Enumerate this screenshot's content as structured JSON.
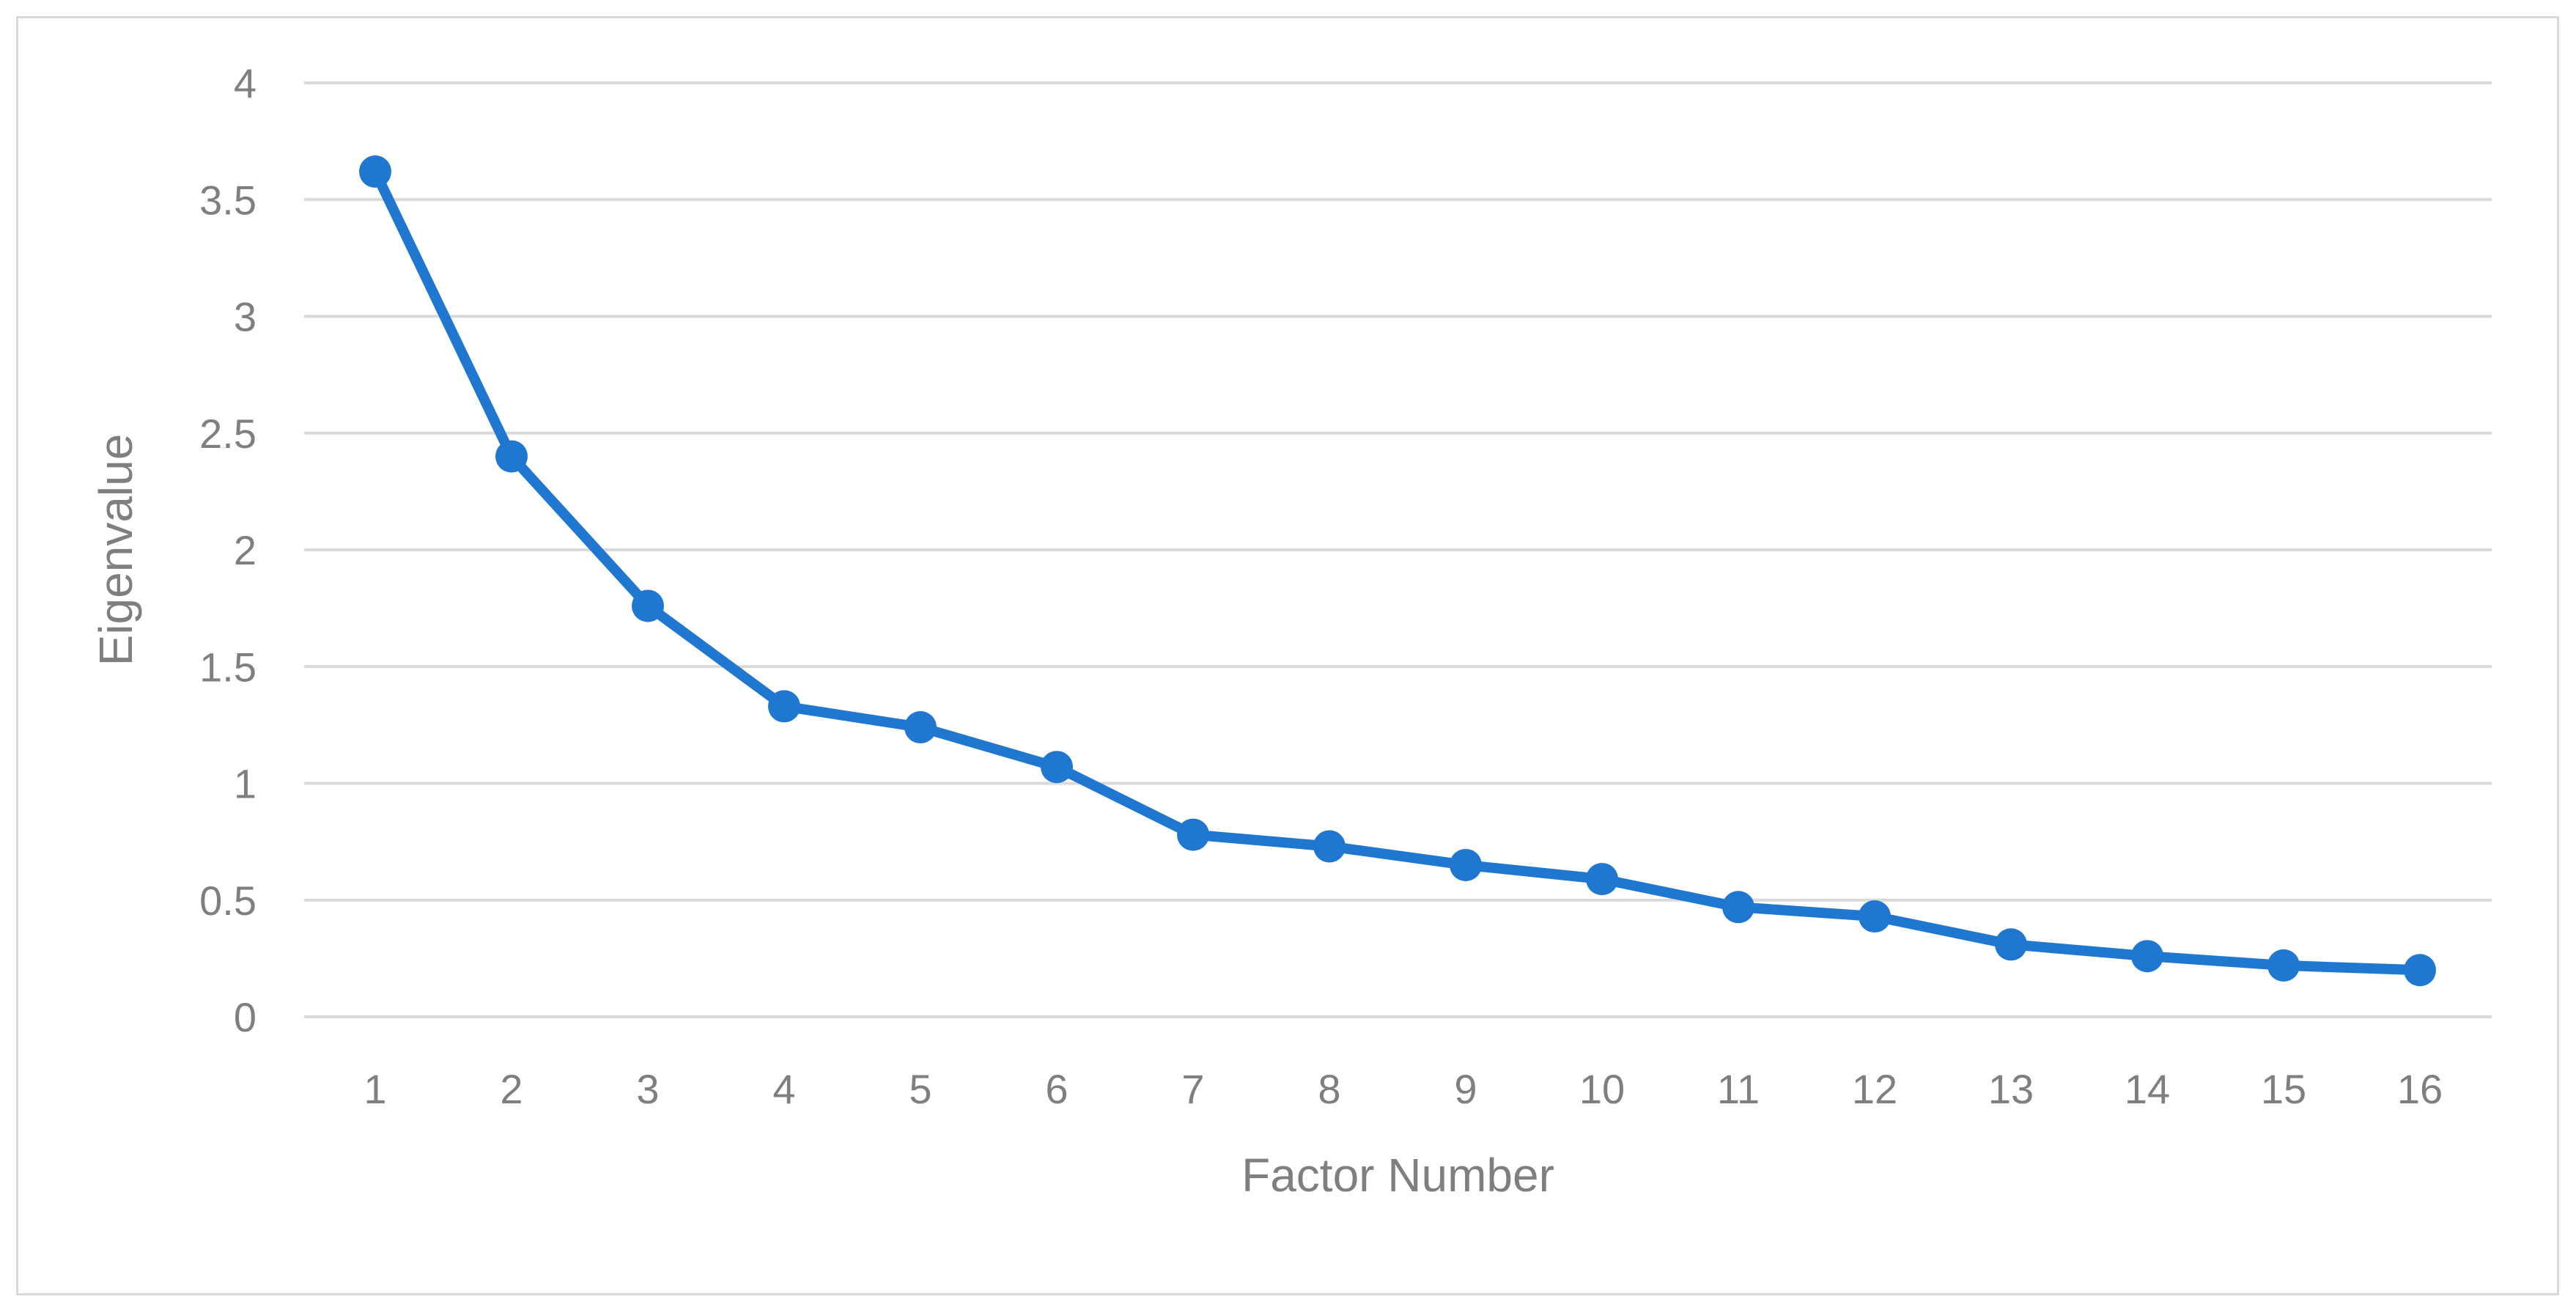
{
  "chart_data": {
    "type": "line",
    "title": "",
    "xlabel": "Factor Number",
    "ylabel": "Eigenvalue",
    "x": [
      1,
      2,
      3,
      4,
      5,
      6,
      7,
      8,
      9,
      10,
      11,
      12,
      13,
      14,
      15,
      16
    ],
    "x_tick_labels": [
      "1",
      "2",
      "3",
      "4",
      "5",
      "6",
      "7",
      "8",
      "9",
      "10",
      "11",
      "12",
      "13",
      "14",
      "15",
      "16"
    ],
    "y_ticks": [
      0,
      0.5,
      1,
      1.5,
      2,
      2.5,
      3,
      3.5,
      4
    ],
    "y_tick_labels": [
      "0",
      "0.5",
      "1",
      "1.5",
      "2",
      "2.5",
      "3",
      "3.5",
      "4"
    ],
    "ylim": [
      0,
      4
    ],
    "grid": "horizontal",
    "legend": "none",
    "series": [
      {
        "values": [
          3.62,
          2.4,
          1.76,
          1.33,
          1.24,
          1.07,
          0.78,
          0.73,
          0.65,
          0.59,
          0.47,
          0.43,
          0.31,
          0.26,
          0.22,
          0.2
        ],
        "color": "#1f77d0"
      }
    ],
    "colors": {
      "gridline": "#d9d9d9",
      "tick_text": "#7f7f7f",
      "frame": "#d9d9d9"
    }
  }
}
